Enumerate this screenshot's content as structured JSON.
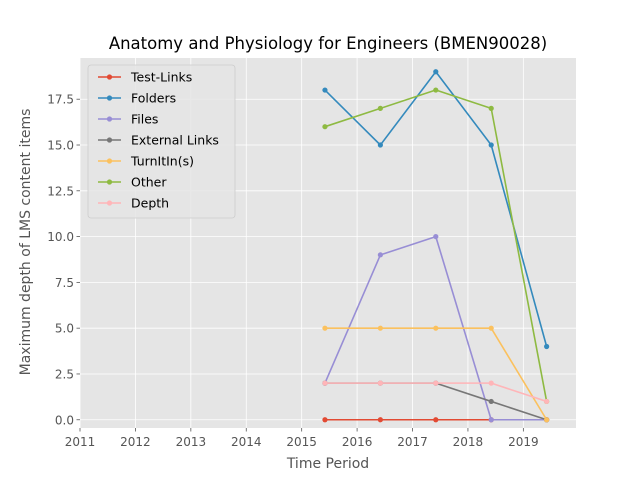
{
  "chart_data": {
    "type": "line",
    "title": "Anatomy and Physiology for Engineers (BMEN90028)",
    "xlabel": "Time Period",
    "ylabel": "Maximum depth of LMS content items",
    "xlim": [
      2011,
      2019.95
    ],
    "ylim": [
      -0.45,
      19.75
    ],
    "xticks": [
      2011,
      2012,
      2013,
      2014,
      2015,
      2016,
      2017,
      2018,
      2019
    ],
    "xtick_labels": [
      "2011",
      "2012",
      "2013",
      "2014",
      "2015",
      "2016",
      "2017",
      "2018",
      "2019"
    ],
    "yticks": [
      0,
      2.5,
      5,
      7.5,
      10,
      12.5,
      15,
      17.5
    ],
    "ytick_labels": [
      "0.0",
      "2.5",
      "5.0",
      "7.5",
      "10.0",
      "12.5",
      "15.0",
      "17.5"
    ],
    "grid": true,
    "legend_position": "upper-left",
    "x": [
      2015.42,
      2016.42,
      2017.42,
      2018.42,
      2019.42
    ],
    "series": [
      {
        "name": "Test-Links",
        "color": "#E24A33",
        "values": [
          0,
          0,
          0,
          0,
          0
        ]
      },
      {
        "name": "Folders",
        "color": "#348ABD",
        "values": [
          18,
          15,
          19,
          15,
          4
        ]
      },
      {
        "name": "Files",
        "color": "#988ED5",
        "values": [
          2,
          9,
          10,
          0,
          0
        ]
      },
      {
        "name": "External Links",
        "color": "#777777",
        "values": [
          2,
          2,
          2,
          1,
          0
        ]
      },
      {
        "name": "TurnItIn(s)",
        "color": "#FBC15E",
        "values": [
          5,
          5,
          5,
          5,
          0
        ]
      },
      {
        "name": "Other",
        "color": "#8EBA42",
        "values": [
          16,
          17,
          18,
          17,
          1
        ]
      },
      {
        "name": "Depth",
        "color": "#FFB5B8",
        "values": [
          2,
          2,
          2,
          2,
          1
        ]
      }
    ]
  },
  "style": {
    "plot_background": "#E5E5E5",
    "grid_color": "#FFFFFF"
  }
}
